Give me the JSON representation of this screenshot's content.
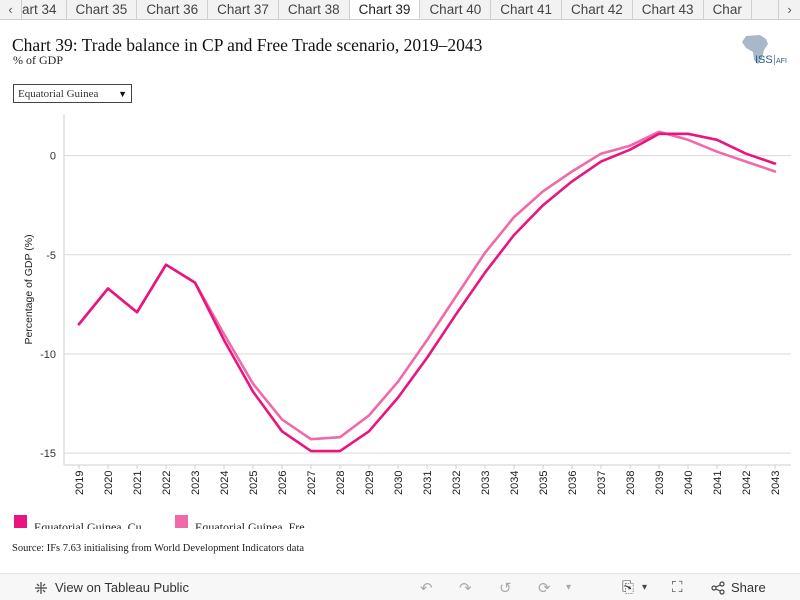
{
  "tabs": {
    "prev_icon": "chevron-left-icon",
    "next_icon": "chevron-right-icon",
    "items": [
      "art 34",
      "Chart 35",
      "Chart 36",
      "Chart 37",
      "Chart 38",
      "Chart 39",
      "Chart 40",
      "Chart 41",
      "Chart 42",
      "Chart 43",
      "Char"
    ],
    "active_index": 5
  },
  "header": {
    "title": "Chart 39: Trade balance in CP and Free Trade scenario, 2019–2043",
    "subtitle": "% of GDP",
    "logo_text": "ISS",
    "logo_suffix": "AFI"
  },
  "filter": {
    "selected": "Equatorial Guinea"
  },
  "chart_data": {
    "type": "line",
    "title": "Chart 39: Trade balance in CP and Free Trade scenario, 2019–2043",
    "subtitle": "% of GDP",
    "xlabel": "",
    "ylabel": "Percentage of GDP (%)",
    "ylim": [
      -15.6,
      2.1
    ],
    "yticks": [
      0,
      -5,
      -10,
      -15
    ],
    "grid": true,
    "legend_position": "bottom",
    "x": [
      "2019",
      "2020",
      "2021",
      "2022",
      "2023",
      "2024",
      "2025",
      "2026",
      "2027",
      "2028",
      "2029",
      "2030",
      "2031",
      "2032",
      "2033",
      "2034",
      "2035",
      "2036",
      "2037",
      "2038",
      "2039",
      "2040",
      "2041",
      "2042",
      "2043"
    ],
    "series": [
      {
        "name": "Equatorial Guinea, Cu",
        "color": "#e8157f",
        "values": [
          -8.5,
          -6.7,
          -7.9,
          -5.5,
          -6.4,
          -9.3,
          -11.9,
          -13.9,
          -14.9,
          -14.9,
          -13.9,
          -12.2,
          -10.2,
          -8.0,
          -5.9,
          -4.0,
          -2.5,
          -1.3,
          -0.3,
          0.3,
          1.1,
          1.1,
          0.8,
          0.1,
          -0.4
        ]
      },
      {
        "name": "Equatorial Guinea, Fre",
        "color": "#f06aaa",
        "values": [
          -8.5,
          -6.7,
          -7.9,
          -5.5,
          -6.4,
          -9.0,
          -11.5,
          -13.3,
          -14.3,
          -14.2,
          -13.1,
          -11.4,
          -9.3,
          -7.1,
          -4.9,
          -3.1,
          -1.8,
          -0.8,
          0.1,
          0.5,
          1.2,
          0.8,
          0.2,
          -0.3,
          -0.8
        ]
      }
    ]
  },
  "source": "Source: IFs 7.63 initialising from World Development Indicators data",
  "footer": {
    "view_label": "View on Tableau Public",
    "share_label": "Share",
    "view_icon": "tableau-icon",
    "share_icon": "share-icon"
  }
}
